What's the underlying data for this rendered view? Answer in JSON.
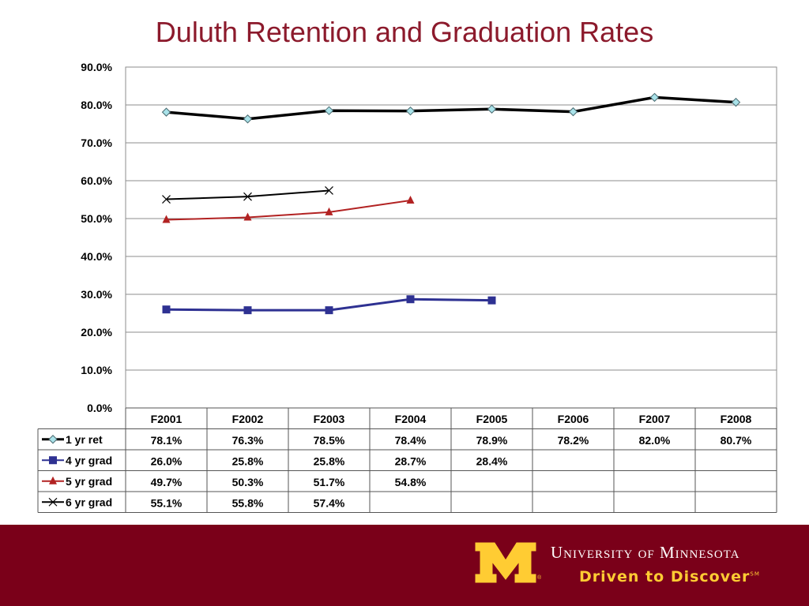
{
  "title": "Duluth Retention and Graduation Rates",
  "colors": {
    "title": "#8c1a2c",
    "footer": "#7a0019",
    "gold": "#ffcc33"
  },
  "footer": {
    "university": "University of Minnesota",
    "tagline": "Driven to Discover",
    "tagline_mark": "SM",
    "logo": "block-m-logo",
    "registered": "®"
  },
  "chart_data": {
    "type": "line",
    "title": "Duluth Retention and Graduation Rates",
    "categories": [
      "F2001",
      "F2002",
      "F2003",
      "F2004",
      "F2005",
      "F2006",
      "F2007",
      "F2008"
    ],
    "y_ticks": [
      "0.0%",
      "10.0%",
      "20.0%",
      "30.0%",
      "40.0%",
      "50.0%",
      "60.0%",
      "70.0%",
      "80.0%",
      "90.0%"
    ],
    "ylim": [
      0,
      90
    ],
    "grid": true,
    "legend_placement": "data table below plot",
    "series": [
      {
        "name": "1 yr ret",
        "color": "#000000",
        "marker": "diamond",
        "values": [
          78.1,
          76.3,
          78.5,
          78.4,
          78.9,
          78.2,
          82.0,
          80.7
        ],
        "labels": [
          "78.1%",
          "76.3%",
          "78.5%",
          "78.4%",
          "78.9%",
          "78.2%",
          "82.0%",
          "80.7%"
        ]
      },
      {
        "name": "4 yr grad",
        "color": "#2e3192",
        "marker": "square",
        "values": [
          26.0,
          25.8,
          25.8,
          28.7,
          28.4,
          null,
          null,
          null
        ],
        "labels": [
          "26.0%",
          "25.8%",
          "25.8%",
          "28.7%",
          "28.4%",
          "",
          "",
          ""
        ]
      },
      {
        "name": "5 yr grad",
        "color": "#b22222",
        "marker": "triangle",
        "values": [
          49.7,
          50.3,
          51.7,
          54.8,
          null,
          null,
          null,
          null
        ],
        "labels": [
          "49.7%",
          "50.3%",
          "51.7%",
          "54.8%",
          "",
          "",
          "",
          ""
        ]
      },
      {
        "name": "6 yr grad",
        "color": "#000000",
        "marker": "x",
        "values": [
          55.1,
          55.8,
          57.4,
          null,
          null,
          null,
          null,
          null
        ],
        "labels": [
          "55.1%",
          "55.8%",
          "57.4%",
          "",
          "",
          "",
          "",
          ""
        ]
      }
    ]
  }
}
